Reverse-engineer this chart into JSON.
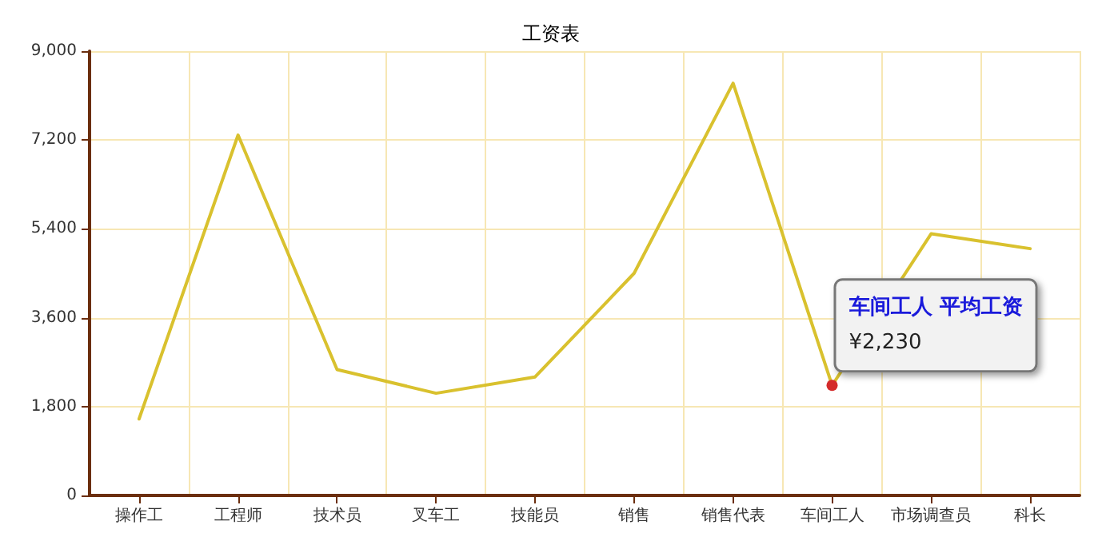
{
  "chart_data": {
    "type": "line",
    "title": "工资表",
    "categories": [
      "操作工",
      "工程师",
      "技术员",
      "叉车工",
      "技能员",
      "销售",
      "销售代表",
      "车间工人",
      "市场调查员",
      "科长"
    ],
    "series": [
      {
        "name": "平均工资",
        "color": "#d9c12e",
        "values": [
          1550,
          7300,
          2550,
          2070,
          2400,
          4500,
          8350,
          2230,
          5300,
          5000
        ],
        "value_labels": [
          null,
          null,
          null,
          null,
          null,
          null,
          null,
          "¥2,230",
          null,
          null
        ]
      }
    ],
    "ylim": [
      0,
      9000
    ],
    "yticks": [
      {
        "value": 0,
        "label": "0"
      },
      {
        "value": 1800,
        "label": "1,800"
      },
      {
        "value": 3600,
        "label": "3,600"
      },
      {
        "value": 5400,
        "label": "5,400"
      },
      {
        "value": 7200,
        "label": "7,200"
      },
      {
        "value": 9000,
        "label": "9,000"
      }
    ],
    "grid": true,
    "legend": false,
    "marker": "none",
    "line_style": "solid"
  }
}
